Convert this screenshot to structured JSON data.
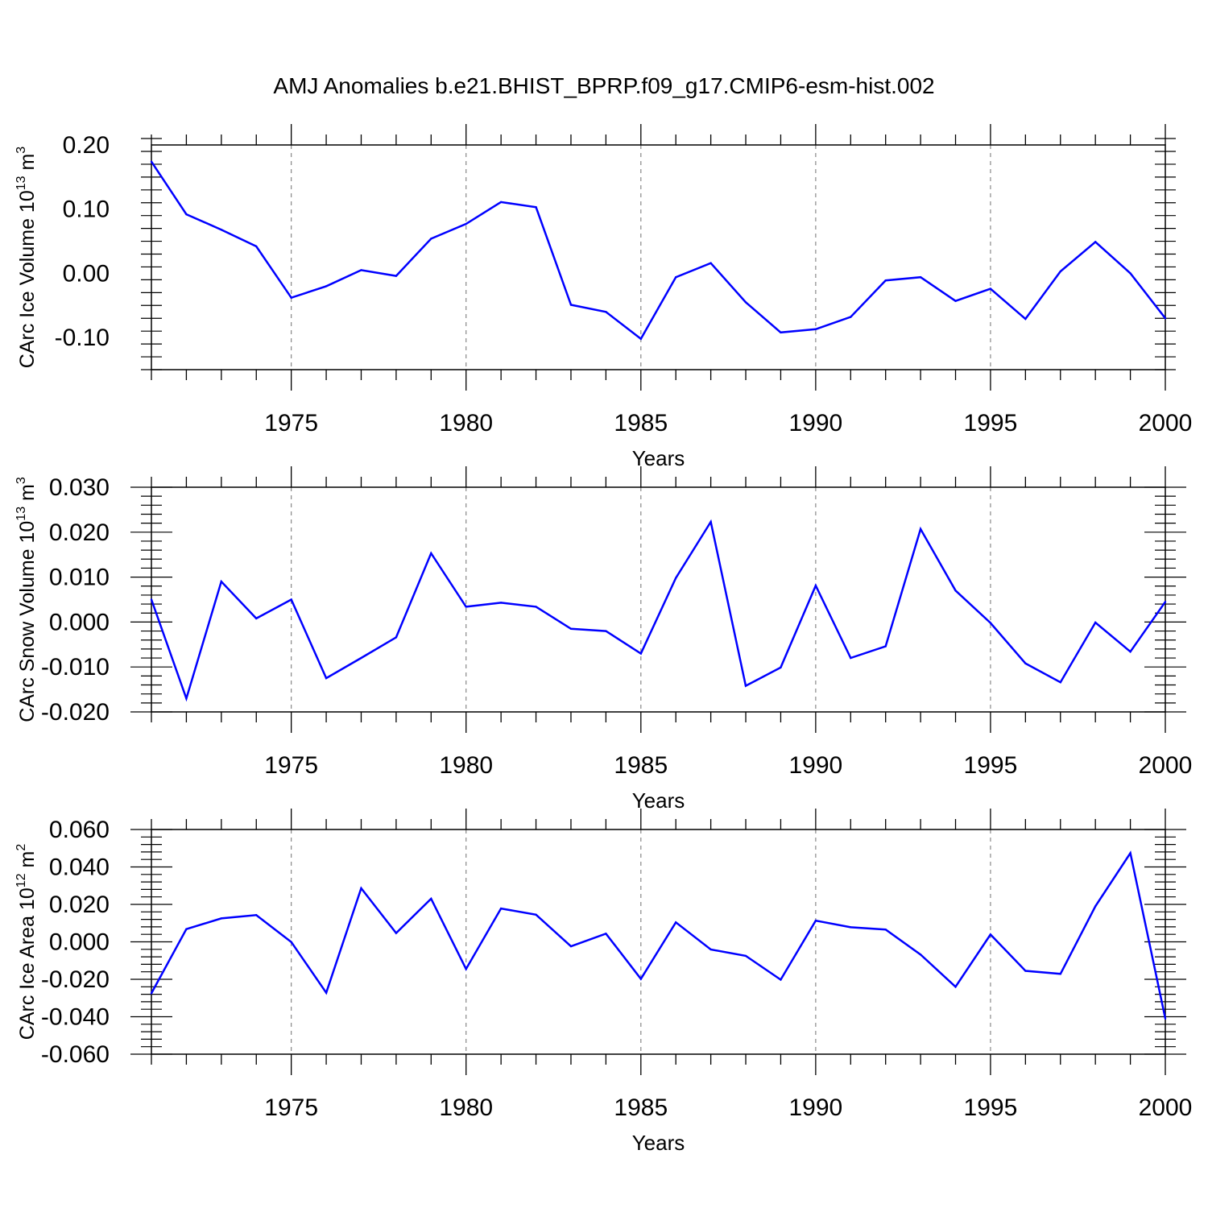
{
  "figure": {
    "title": "AMJ Anomalies b.e21.BHIST_BPRP.f09_g17.CMIP6-esm-hist.002"
  },
  "chart_data": [
    {
      "type": "line",
      "title": "",
      "xlabel": "Years",
      "ylabel": {
        "main": "CArc Ice Volume 10",
        "exp": "13",
        "unit": " m",
        "unit_exp": "3"
      },
      "xlim": [
        1971,
        2000
      ],
      "ylim": [
        -0.15,
        0.2
      ],
      "yticks": [
        -0.1,
        0.0,
        0.1,
        0.2
      ],
      "ytick_labels": [
        "-0.10",
        "0.00",
        "0.10",
        "0.20"
      ],
      "xticks": [
        1975,
        1980,
        1985,
        1990,
        1995,
        2000
      ],
      "xtick_labels": [
        "1975",
        "1980",
        "1985",
        "1990",
        "1995",
        "2000"
      ],
      "grid_x": [
        1975,
        1980,
        1985,
        1990,
        1995
      ],
      "series": [
        {
          "name": "CArc Ice Volume",
          "color": "#0000ff",
          "x": [
            1971,
            1972,
            1973,
            1974,
            1975,
            1976,
            1977,
            1978,
            1979,
            1980,
            1981,
            1982,
            1983,
            1984,
            1985,
            1986,
            1987,
            1988,
            1989,
            1990,
            1991,
            1992,
            1993,
            1994,
            1995,
            1996,
            1997,
            1998,
            1999,
            2000
          ],
          "values": [
            0.174,
            0.092,
            0.068,
            0.042,
            -0.038,
            -0.02,
            0.005,
            -0.004,
            0.054,
            0.077,
            0.111,
            0.103,
            -0.049,
            -0.06,
            -0.102,
            -0.006,
            0.016,
            -0.045,
            -0.092,
            -0.087,
            -0.068,
            -0.011,
            -0.006,
            -0.043,
            -0.024,
            -0.071,
            0.003,
            0.049,
            0.0,
            -0.07
          ]
        }
      ]
    },
    {
      "type": "line",
      "title": "",
      "xlabel": "Years",
      "ylabel": {
        "main": "CArc Snow Volume 10",
        "exp": "13",
        "unit": " m",
        "unit_exp": "3"
      },
      "xlim": [
        1971,
        2000
      ],
      "ylim": [
        -0.02,
        0.03
      ],
      "yticks": [
        -0.02,
        -0.01,
        0.0,
        0.01,
        0.02,
        0.03
      ],
      "ytick_labels": [
        "-0.020",
        "-0.010",
        "0.000",
        "0.010",
        "0.020",
        "0.030"
      ],
      "xticks": [
        1975,
        1980,
        1985,
        1990,
        1995,
        2000
      ],
      "xtick_labels": [
        "1975",
        "1980",
        "1985",
        "1990",
        "1995",
        "2000"
      ],
      "grid_x": [
        1975,
        1980,
        1985,
        1990,
        1995
      ],
      "series": [
        {
          "name": "CArc Snow Volume",
          "color": "#0000ff",
          "x": [
            1971,
            1972,
            1973,
            1974,
            1975,
            1976,
            1977,
            1978,
            1979,
            1980,
            1981,
            1982,
            1983,
            1984,
            1985,
            1986,
            1987,
            1988,
            1989,
            1990,
            1991,
            1992,
            1993,
            1994,
            1995,
            1996,
            1997,
            1998,
            1999,
            2000
          ],
          "values": [
            0.005,
            -0.017,
            0.009,
            0.0008,
            0.005,
            -0.0125,
            -0.008,
            -0.0034,
            0.0153,
            0.0034,
            0.0043,
            0.0034,
            -0.0015,
            -0.002,
            -0.007,
            0.0098,
            0.0223,
            -0.0142,
            -0.0101,
            0.0081,
            -0.008,
            -0.0054,
            0.0207,
            0.007,
            -0.0002,
            -0.0092,
            -0.0134,
            -0.0001,
            -0.0066,
            0.0045
          ]
        }
      ]
    },
    {
      "type": "line",
      "title": "",
      "xlabel": "Years",
      "ylabel": {
        "main": "CArc Ice Area 10",
        "exp": "12",
        "unit": " m",
        "unit_exp": "2"
      },
      "xlim": [
        1971,
        2000
      ],
      "ylim": [
        -0.06,
        0.06
      ],
      "yticks": [
        -0.06,
        -0.04,
        -0.02,
        0.0,
        0.02,
        0.04,
        0.06
      ],
      "ytick_labels": [
        "-0.060",
        "-0.040",
        "-0.020",
        "0.000",
        "0.020",
        "0.040",
        "0.060"
      ],
      "xticks": [
        1975,
        1980,
        1985,
        1990,
        1995,
        2000
      ],
      "xtick_labels": [
        "1975",
        "1980",
        "1985",
        "1990",
        "1995",
        "2000"
      ],
      "grid_x": [
        1975,
        1980,
        1985,
        1990,
        1995
      ],
      "series": [
        {
          "name": "CArc Ice Area",
          "color": "#0000ff",
          "x": [
            1971,
            1972,
            1973,
            1974,
            1975,
            1976,
            1977,
            1978,
            1979,
            1980,
            1981,
            1982,
            1983,
            1984,
            1985,
            1986,
            1987,
            1988,
            1989,
            1990,
            1991,
            1992,
            1993,
            1994,
            1995,
            1996,
            1997,
            1998,
            1999,
            2000
          ],
          "values": [
            -0.0275,
            0.0068,
            0.0125,
            0.0143,
            -0.0001,
            -0.0272,
            0.0286,
            0.0047,
            0.023,
            -0.0145,
            0.0178,
            0.0145,
            -0.0024,
            0.0044,
            -0.0198,
            0.0104,
            -0.0041,
            -0.0075,
            -0.0202,
            0.0113,
            0.0078,
            0.0066,
            -0.0068,
            -0.024,
            0.0039,
            -0.0155,
            -0.0171,
            0.019,
            0.0474,
            -0.041
          ]
        }
      ]
    }
  ]
}
